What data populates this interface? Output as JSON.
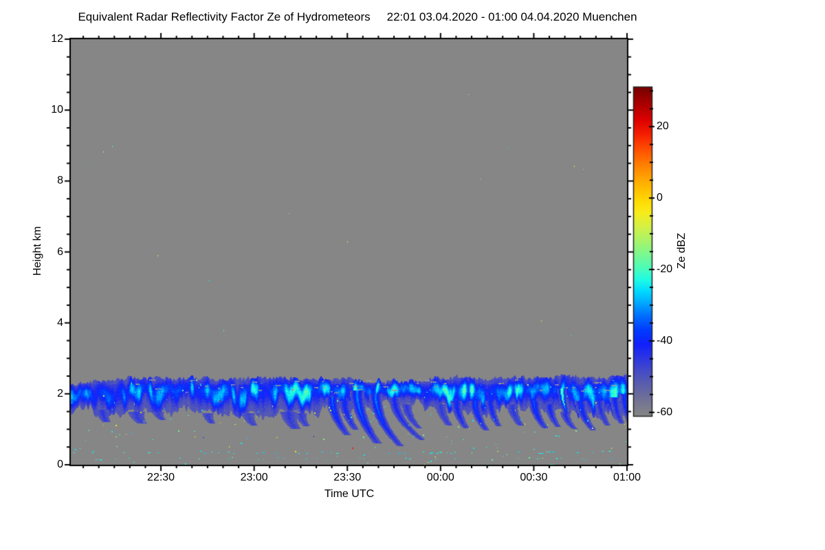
{
  "header": {
    "title": "Equivalent Radar Reflectivity Factor Ze of Hydrometeors",
    "period": "22:01 03.04.2020 - 01:00 04.04.2020 Muenchen"
  },
  "chart_data": {
    "type": "heatmap",
    "title": "Equivalent Radar Reflectivity Factor Ze of Hydrometeors 22:01 03.04.2020 - 01:00 04.04.2020 Muenchen",
    "xlabel": "Time UTC",
    "ylabel": "Height km",
    "x_start": "22:01",
    "x_end": "01:00",
    "x_total_minutes": 179,
    "x_ticks": [
      {
        "m": 29,
        "label": "22:30"
      },
      {
        "m": 59,
        "label": "23:00"
      },
      {
        "m": 89,
        "label": "23:30"
      },
      {
        "m": 119,
        "label": "00:00"
      },
      {
        "m": 149,
        "label": "00:30"
      },
      {
        "m": 179,
        "label": "01:00"
      }
    ],
    "x_minor_interval_min": 5,
    "ylim": [
      0,
      12
    ],
    "y_ticks": [
      0,
      2,
      4,
      6,
      8,
      10,
      12
    ],
    "y_minor_interval_km": 0.5,
    "grid": false,
    "background_color": "#868686",
    "frame_color": "#000000",
    "colorbar": {
      "label": "Ze dBZ",
      "units": "dBZ",
      "range": [
        -61,
        31
      ],
      "ticks": [
        20,
        0,
        -20,
        -40,
        -60
      ],
      "minor_interval_dbz": 5,
      "stops": [
        [
          -61,
          "#868686"
        ],
        [
          -57,
          "#737494"
        ],
        [
          -53,
          "#5f62a8"
        ],
        [
          -49,
          "#484ec3"
        ],
        [
          -45,
          "#2d37e1"
        ],
        [
          -41,
          "#1220fc"
        ],
        [
          -37,
          "#003cff"
        ],
        [
          -33,
          "#006eff"
        ],
        [
          -29,
          "#00afff"
        ],
        [
          -26,
          "#00dcff"
        ],
        [
          -23,
          "#1efae6"
        ],
        [
          -20,
          "#46fcbe"
        ],
        [
          -16,
          "#78f891"
        ],
        [
          -12,
          "#a8f469"
        ],
        [
          -8,
          "#d4f046"
        ],
        [
          -4,
          "#f8ec19"
        ],
        [
          -1,
          "#ffdc05"
        ],
        [
          2,
          "#ffc300"
        ],
        [
          6,
          "#ffa000"
        ],
        [
          10,
          "#ff7800"
        ],
        [
          14,
          "#ff4b00"
        ],
        [
          18,
          "#f51e00"
        ],
        [
          22,
          "#dc0000"
        ],
        [
          26,
          "#af0000"
        ],
        [
          31,
          "#780000"
        ]
      ]
    },
    "cloud_layer": {
      "description": "Single shallow stratiform cloud layer near 2 km with cyan reflectivity cores (-30 to -22 dBZ), dark blue fringes (-50 dBZ) and virga fall streaks below; gray background = no signal",
      "samples": {
        "minute": [
          0,
          8,
          16,
          24,
          32,
          40,
          48,
          56,
          64,
          72,
          80,
          88,
          96,
          104,
          112,
          119,
          127,
          135,
          143,
          151,
          159,
          167,
          173,
          179
        ],
        "top_km": [
          2.25,
          2.4,
          2.42,
          2.45,
          2.45,
          2.45,
          2.4,
          2.45,
          2.45,
          2.4,
          2.45,
          2.4,
          2.35,
          2.35,
          2.4,
          2.45,
          2.45,
          2.4,
          2.45,
          2.45,
          2.5,
          2.45,
          2.45,
          2.5
        ],
        "base_km": [
          1.55,
          1.5,
          1.5,
          1.5,
          1.55,
          1.5,
          1.5,
          1.45,
          1.4,
          1.45,
          1.55,
          1.6,
          1.65,
          1.7,
          1.7,
          1.6,
          1.55,
          1.5,
          1.55,
          1.5,
          1.5,
          1.45,
          1.4,
          1.3
        ],
        "intensity": [
          0.6,
          0.6,
          0.55,
          0.6,
          0.65,
          0.75,
          0.7,
          0.7,
          0.75,
          0.8,
          0.9,
          0.95,
          0.9,
          0.75,
          0.6,
          0.8,
          0.9,
          0.85,
          0.85,
          0.9,
          0.9,
          0.85,
          0.8,
          0.85
        ]
      },
      "bright_band_km": [
        2.05,
        2.28
      ],
      "missing_data_dash_color": "#9a9a9a"
    },
    "fall_streaks": {
      "fields": [
        "start_minute",
        "top_km",
        "bottom_km",
        "drift_px",
        "width_px",
        "core_dbz"
      ],
      "items": [
        [
          10,
          1.55,
          1.22,
          6,
          10,
          -44
        ],
        [
          21,
          1.5,
          1.18,
          8,
          12,
          -45
        ],
        [
          28,
          1.5,
          1.28,
          6,
          8,
          -46
        ],
        [
          44,
          1.45,
          1.18,
          6,
          8,
          -46
        ],
        [
          57,
          1.45,
          1.12,
          8,
          9,
          -47
        ],
        [
          70,
          1.5,
          1.02,
          10,
          12,
          -44
        ],
        [
          74,
          1.45,
          1.1,
          8,
          8,
          -45
        ],
        [
          84,
          1.9,
          0.85,
          22,
          9,
          -33
        ],
        [
          88,
          1.8,
          1.0,
          16,
          8,
          -38
        ],
        [
          92,
          2.1,
          0.62,
          30,
          10,
          -30
        ],
        [
          98,
          2.0,
          0.55,
          36,
          9,
          -31
        ],
        [
          104,
          1.9,
          0.72,
          40,
          8,
          -40
        ],
        [
          108,
          1.7,
          1.05,
          18,
          7,
          -44
        ],
        [
          119,
          1.7,
          1.12,
          12,
          8,
          -45
        ],
        [
          124,
          1.8,
          1.05,
          14,
          8,
          -38
        ],
        [
          130,
          1.8,
          0.98,
          16,
          8,
          -34
        ],
        [
          135,
          1.8,
          1.1,
          12,
          7,
          -38
        ],
        [
          142,
          1.7,
          1.12,
          12,
          8,
          -44
        ],
        [
          149,
          1.8,
          1.05,
          16,
          8,
          -34
        ],
        [
          154,
          1.7,
          1.08,
          12,
          7,
          -40
        ],
        [
          158,
          2.15,
          1.4,
          8,
          6,
          -12
        ],
        [
          159,
          1.5,
          1.02,
          14,
          7,
          -42
        ],
        [
          164,
          1.8,
          0.98,
          18,
          8,
          -36
        ],
        [
          170,
          1.8,
          1.12,
          12,
          7,
          -42
        ],
        [
          175,
          1.9,
          1.18,
          10,
          7,
          -38
        ],
        [
          178,
          2.0,
          1.22,
          8,
          7,
          -36
        ]
      ]
    },
    "noise_speckles": {
      "row1_km": 0.35,
      "row2_km": 0.18,
      "scattered_low_count": 175,
      "scattered_high_count": 15,
      "colors_note": "mostly cyan/green, some yellow-green, rare yellow and red single pixels"
    }
  }
}
